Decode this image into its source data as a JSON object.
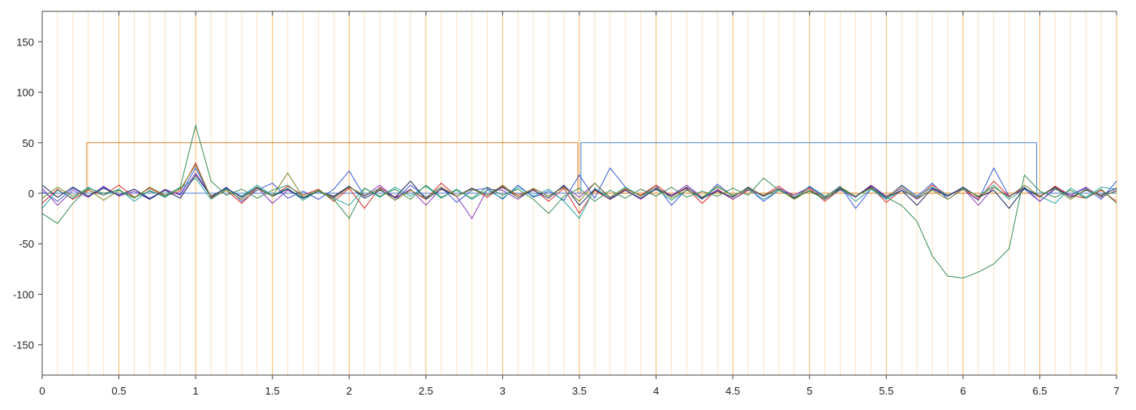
{
  "chart_data": {
    "type": "line",
    "xlim": [
      0,
      7
    ],
    "ylim": [
      -180,
      180
    ],
    "xticks": [
      0,
      0.5,
      1,
      1.5,
      2,
      2.5,
      3,
      3.5,
      4,
      4.5,
      5,
      5.5,
      6,
      6.5,
      7
    ],
    "xminorticks": [
      0.1,
      0.2,
      0.3,
      0.4,
      0.6,
      0.7,
      0.8,
      0.9,
      1.1,
      1.2,
      1.3,
      1.4,
      1.6,
      1.7,
      1.8,
      1.9,
      2.1,
      2.2,
      2.3,
      2.4,
      2.6,
      2.7,
      2.8,
      2.9,
      3.1,
      3.2,
      3.3,
      3.4,
      3.6,
      3.7,
      3.8,
      3.9,
      4.1,
      4.2,
      4.3,
      4.4,
      4.6,
      4.7,
      4.8,
      4.9,
      5.1,
      5.2,
      5.3,
      5.4,
      5.6,
      5.7,
      5.8,
      5.9,
      6.1,
      6.2,
      6.3,
      6.4,
      6.6,
      6.7,
      6.8,
      6.9
    ],
    "yticks": [
      -150,
      -100,
      -50,
      0,
      50,
      100,
      150
    ],
    "grid": true,
    "grid_color": "#f3b866",
    "minor_grid_color": "#fbe3c0",
    "x": [
      0,
      0.1,
      0.2,
      0.3,
      0.4,
      0.5,
      0.6,
      0.7,
      0.8,
      0.9,
      1,
      1.1,
      1.2,
      1.3,
      1.4,
      1.5,
      1.6,
      1.7,
      1.8,
      1.9,
      2,
      2.1,
      2.2,
      2.3,
      2.4,
      2.5,
      2.6,
      2.7,
      2.8,
      2.9,
      3,
      3.1,
      3.2,
      3.3,
      3.4,
      3.5,
      3.6,
      3.7,
      3.8,
      3.9,
      4,
      4.1,
      4.2,
      4.3,
      4.4,
      4.5,
      4.6,
      4.7,
      4.8,
      4.9,
      5,
      5.1,
      5.2,
      5.3,
      5.4,
      5.5,
      5.6,
      5.7,
      5.8,
      5.9,
      6,
      6.1,
      6.2,
      6.3,
      6.4,
      6.5,
      6.6,
      6.7,
      6.8,
      6.9,
      7
    ],
    "series": [
      {
        "color": "#d9822b",
        "x": [
          0,
          0.29,
          0.29,
          3.49,
          3.49,
          7
        ],
        "values": [
          0,
          0,
          50,
          50,
          0,
          0
        ]
      },
      {
        "color": "#4a7fd0",
        "x": [
          0,
          3.51,
          3.51,
          6.48,
          6.48,
          7
        ],
        "values": [
          0,
          0,
          50,
          50,
          0,
          0
        ]
      },
      {
        "color": "#3b5bd9",
        "values": [
          2,
          -8,
          5,
          -3,
          6,
          -2,
          4,
          -5,
          3,
          -1,
          25,
          -4,
          6,
          -8,
          3,
          10,
          -5,
          2,
          -6,
          4,
          22,
          -3,
          5,
          -7,
          8,
          -4,
          6,
          -9,
          3,
          5,
          -6,
          8,
          -4,
          2,
          -7,
          18,
          -5,
          25,
          6,
          -3,
          8,
          -12,
          4,
          -6,
          9,
          -3,
          5,
          -8,
          3,
          -2,
          6,
          -4,
          7,
          -15,
          4,
          -5,
          8,
          -3,
          10,
          -6,
          4,
          -7,
          25,
          -3,
          6,
          -8,
          4,
          -2,
          5,
          -6,
          12
        ]
      },
      {
        "color": "#d62f2f",
        "values": [
          -10,
          4,
          -6,
          3,
          -2,
          8,
          -4,
          5,
          -3,
          2,
          30,
          -5,
          3,
          -10,
          5,
          -3,
          7,
          -2,
          4,
          -8,
          5,
          -15,
          6,
          -4,
          3,
          -6,
          10,
          -3,
          5,
          -4,
          7,
          -2,
          4,
          -8,
          5,
          -20,
          3,
          -6,
          4,
          -2,
          8,
          -3,
          5,
          -10,
          4,
          -6,
          3,
          -2,
          7,
          -4,
          5,
          -8,
          4,
          -3,
          6,
          -9,
          3,
          -5,
          8,
          -2,
          4,
          -6,
          12,
          -3,
          5,
          -4,
          7,
          -2,
          -5,
          3,
          -8
        ]
      },
      {
        "color": "#8a3fc0",
        "values": [
          5,
          -12,
          3,
          -4,
          7,
          -3,
          2,
          -6,
          4,
          -2,
          20,
          -3,
          5,
          -4,
          6,
          -10,
          3,
          -5,
          2,
          -4,
          6,
          -3,
          8,
          -5,
          4,
          -12,
          5,
          -3,
          -25,
          4,
          3,
          -6,
          5,
          -3,
          7,
          -4,
          10,
          -5,
          3,
          -6,
          5,
          -2,
          8,
          -4,
          3,
          -6,
          4,
          -3,
          5,
          -2,
          6,
          -5,
          3,
          -4,
          8,
          -3,
          5,
          -6,
          4,
          -3,
          5,
          -12,
          6,
          -3,
          4,
          -8,
          5,
          -2,
          6,
          -4,
          3
        ]
      },
      {
        "color": "#2aa5a5",
        "values": [
          -15,
          3,
          -5,
          6,
          -2,
          4,
          -8,
          3,
          -4,
          5,
          15,
          -6,
          4,
          -3,
          8,
          -2,
          5,
          -7,
          3,
          -5,
          -12,
          5,
          -4,
          6,
          -3,
          7,
          -5,
          4,
          -6,
          3,
          -5,
          6,
          -3,
          4,
          -8,
          -25,
          5,
          -4,
          6,
          -3,
          4,
          -7,
          3,
          -5,
          6,
          -2,
          4,
          -6,
          3,
          -5,
          7,
          -3,
          5,
          -8,
          4,
          -6,
          3,
          -4,
          6,
          -2,
          5,
          -3,
          8,
          -6,
          4,
          -3,
          -10,
          5,
          -4,
          6,
          4
        ]
      },
      {
        "color": "#1c2a5c",
        "values": [
          8,
          -4,
          6,
          -3,
          5,
          -2,
          4,
          -6,
          3,
          -5,
          18,
          -3,
          5,
          -4,
          6,
          -3,
          4,
          -5,
          2,
          -3,
          7,
          -5,
          3,
          -4,
          12,
          -6,
          4,
          -3,
          5,
          -2,
          6,
          -4,
          3,
          -5,
          8,
          -12,
          4,
          -6,
          3,
          -5,
          4,
          -3,
          6,
          -5,
          2,
          -4,
          6,
          -3,
          4,
          -5,
          3,
          -6,
          5,
          -3,
          7,
          -4,
          3,
          -12,
          5,
          -3,
          6,
          -4,
          3,
          -15,
          5,
          -3,
          6,
          -4,
          3,
          -2,
          5
        ]
      },
      {
        "color": "#7a8a2a",
        "values": [
          -5,
          6,
          -3,
          4,
          -7,
          3,
          -5,
          6,
          -2,
          4,
          28,
          -4,
          3,
          -6,
          5,
          -3,
          20,
          -4,
          3,
          -5,
          6,
          -2,
          4,
          -7,
          3,
          -5,
          6,
          -3,
          4,
          -2,
          8,
          -4,
          5,
          -3,
          6,
          -8,
          10,
          -4,
          5,
          -3,
          6,
          -5,
          3,
          -4,
          7,
          -3,
          5,
          -2,
          4,
          -6,
          3,
          -4,
          6,
          -3,
          5,
          -4,
          7,
          -5,
          3,
          -6,
          4,
          -3,
          6,
          -4,
          8,
          -3,
          5,
          -6,
          4,
          -3,
          2
        ]
      },
      {
        "color": "#3a8f5a",
        "values": [
          -20,
          -30,
          -10,
          5,
          0,
          3,
          -4,
          2,
          -3,
          6,
          67,
          12,
          -2,
          4,
          -5,
          3,
          8,
          -4,
          2,
          -6,
          -25,
          5,
          -3,
          4,
          -6,
          8,
          -4,
          3,
          -5,
          6,
          -2,
          4,
          -6,
          -20,
          -3,
          5,
          -8,
          3,
          -5,
          4,
          -3,
          6,
          -4,
          2,
          -3,
          5,
          -2,
          15,
          3,
          -4,
          2,
          -6,
          4,
          -3,
          5,
          -4,
          -12,
          -28,
          -62,
          -82,
          -84,
          -78,
          -70,
          -55,
          18,
          2,
          -4,
          3,
          -5,
          4,
          -10
        ]
      }
    ]
  }
}
